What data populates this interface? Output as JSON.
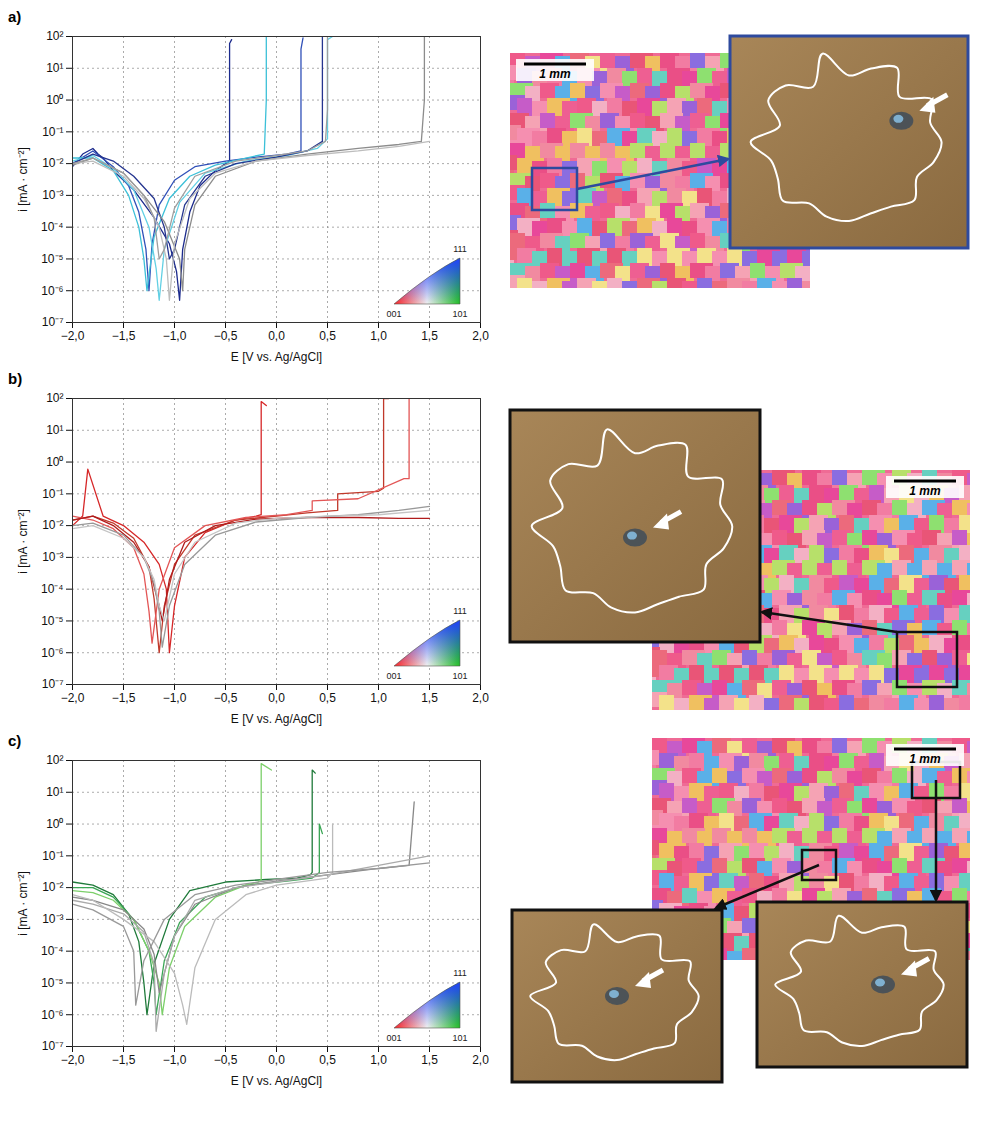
{
  "chart_data": [
    {
      "type": "line",
      "panel_label": "a)",
      "xlabel": "E [V vs. Ag/AgCl]",
      "ylabel": "i [mA · cm⁻²]",
      "log": "y",
      "grid": true,
      "xlim": [
        -2,
        2
      ],
      "ylim": [
        1e-07,
        100
      ],
      "xticks": [
        {
          "value": -2,
          "label": "−2,0"
        },
        {
          "value": -1.5,
          "label": "−1,5"
        },
        {
          "value": -1,
          "label": "−1,0"
        },
        {
          "value": -0.5,
          "label": "−0,5"
        },
        {
          "value": 0,
          "label": "0,0"
        },
        {
          "value": 0.5,
          "label": "0,5"
        },
        {
          "value": 1,
          "label": "1,0"
        },
        {
          "value": 1.5,
          "label": "1,5"
        },
        {
          "value": 2,
          "label": "2,0"
        }
      ],
      "yticks": [
        {
          "value": 1e-07,
          "label": "10⁻⁷"
        },
        {
          "value": 1e-06,
          "label": "10⁻⁶"
        },
        {
          "value": 1e-05,
          "label": "10⁻⁵"
        },
        {
          "value": 0.0001,
          "label": "10⁻⁴"
        },
        {
          "value": 0.001,
          "label": "10⁻³"
        },
        {
          "value": 0.01,
          "label": "10⁻²"
        },
        {
          "value": 0.1,
          "label": "10⁻¹"
        },
        {
          "value": 1,
          "label": "10⁰"
        },
        {
          "value": 10,
          "label": "10¹"
        },
        {
          "value": 100,
          "label": "10²"
        }
      ],
      "color_key": [
        "001",
        "101",
        "111"
      ],
      "scale_bar": "1 mm",
      "series": [
        {
          "color": "#1b2a8c",
          "x": [
            -2,
            -1.9,
            -1.8,
            -1.75,
            -1.7,
            -1.6,
            -1.4,
            -1.2,
            -1.05,
            -0.98,
            -0.95,
            -0.92,
            -0.85,
            -0.75,
            -0.6,
            -0.5,
            -0.46,
            -0.46,
            -0.44
          ],
          "values": [
            0.008,
            0.02,
            0.03,
            0.02,
            0.015,
            0.006,
            0.0015,
            0.0002,
            3e-05,
            4e-06,
            5e-07,
            2e-05,
            0.0003,
            0.002,
            0.006,
            0.01,
            0.012,
            60,
            80
          ]
        },
        {
          "color": "#3050b8",
          "x": [
            -2,
            -1.8,
            -1.6,
            -1.45,
            -1.35,
            -1.28,
            -1.25,
            -1.22,
            -1.15,
            -1.0,
            -0.8,
            -0.5,
            -0.2,
            0.1,
            0.24,
            0.24,
            0.26
          ],
          "values": [
            0.01,
            0.025,
            0.008,
            0.002,
            0.0003,
            2e-05,
            1e-06,
            3e-05,
            0.0005,
            0.003,
            0.008,
            0.012,
            0.016,
            0.02,
            0.025,
            40,
            90
          ]
        },
        {
          "color": "#3cc0d8",
          "x": [
            -2,
            -1.8,
            -1.6,
            -1.45,
            -1.35,
            -1.3,
            -1.27,
            -1.2,
            -1.05,
            -0.85,
            -0.6,
            -0.3,
            -0.12,
            -0.1,
            -0.1
          ],
          "values": [
            0.015,
            0.015,
            0.006,
            0.001,
            0.0001,
            1e-05,
            1e-06,
            5e-05,
            0.0008,
            0.004,
            0.009,
            0.015,
            0.02,
            1,
            100
          ]
        },
        {
          "color": "#62d0e4",
          "x": [
            -2,
            -1.8,
            -1.6,
            -1.4,
            -1.25,
            -1.18,
            -1.15,
            -1.1,
            -0.95,
            -0.7,
            -0.3,
            0.1,
            0.4,
            0.5,
            0.5,
            0.55
          ],
          "values": [
            0.012,
            0.018,
            0.007,
            0.0015,
            0.0001,
            5e-06,
            5e-07,
            2e-05,
            0.0006,
            0.005,
            0.012,
            0.018,
            0.03,
            0.06,
            80,
            100
          ]
        },
        {
          "color": "#25358f",
          "x": [
            -2,
            -1.8,
            -1.6,
            -1.4,
            -1.2,
            -1.1,
            -1.05,
            -1.0,
            -0.9,
            -0.7,
            -0.4,
            0.0,
            0.3,
            0.4,
            0.45,
            0.45
          ],
          "values": [
            0.01,
            0.02,
            0.012,
            0.004,
            0.0008,
            0.0001,
            1e-05,
            2e-05,
            0.0005,
            0.004,
            0.01,
            0.016,
            0.025,
            0.04,
            0.05,
            100
          ]
        },
        {
          "color": "#8c8c8c",
          "x": [
            -2,
            -1.8,
            -1.5,
            -1.3,
            -1.1,
            -0.95,
            -0.92,
            -0.9,
            -0.8,
            -0.6,
            -0.2,
            0.3,
            0.8,
            1.2,
            1.42,
            1.45,
            1.45
          ],
          "values": [
            0.009,
            0.015,
            0.005,
            0.001,
            0.00015,
            1e-05,
            1e-06,
            2e-05,
            0.0005,
            0.004,
            0.012,
            0.02,
            0.03,
            0.04,
            0.05,
            1,
            100
          ]
        },
        {
          "color": "#bdbdbd",
          "x": [
            -2,
            -1.8,
            -1.5,
            -1.3,
            -1.15,
            -1.08,
            -1.05,
            -1.0,
            -0.85,
            -0.6,
            -0.2,
            0.3,
            0.8,
            1.2,
            1.5
          ],
          "values": [
            0.01,
            0.012,
            0.004,
            0.0008,
            0.0001,
            1e-05,
            5e-07,
            3e-05,
            0.0008,
            0.005,
            0.012,
            0.018,
            0.025,
            0.035,
            0.05
          ]
        },
        {
          "color": "#9e9e9e",
          "x": [
            -2,
            -1.8,
            -1.5,
            -1.3,
            -1.2,
            -1.15,
            -1.1,
            -1.0,
            -0.8,
            -0.4,
            0,
            0.3,
            0.48,
            0.5,
            0.5
          ],
          "values": [
            0.01,
            0.015,
            0.005,
            0.001,
            0.0002,
            1e-05,
            2e-05,
            0.0004,
            0.004,
            0.012,
            0.018,
            0.025,
            0.05,
            0.5,
            100
          ]
        }
      ]
    },
    {
      "type": "line",
      "panel_label": "b)",
      "xlabel": "E [V vs. Ag/AgCl]",
      "ylabel": "i [mA · cm⁻²]",
      "log": "y",
      "grid": true,
      "xlim": [
        -2,
        2
      ],
      "ylim": [
        1e-07,
        100
      ],
      "xticks": [
        {
          "value": -2,
          "label": "−2,0"
        },
        {
          "value": -1.5,
          "label": "−1,5"
        },
        {
          "value": -1,
          "label": "−1,0"
        },
        {
          "value": -0.5,
          "label": "−0,5"
        },
        {
          "value": 0,
          "label": "0,0"
        },
        {
          "value": 0.5,
          "label": "0,5"
        },
        {
          "value": 1,
          "label": "1,0"
        },
        {
          "value": 1.5,
          "label": "1,5"
        },
        {
          "value": 2,
          "label": "2,0"
        }
      ],
      "yticks": [
        {
          "value": 1e-07,
          "label": "10⁻⁷"
        },
        {
          "value": 1e-06,
          "label": "10⁻⁶"
        },
        {
          "value": 1e-05,
          "label": "10⁻⁵"
        },
        {
          "value": 0.0001,
          "label": "10⁻⁴"
        },
        {
          "value": 0.001,
          "label": "10⁻³"
        },
        {
          "value": 0.01,
          "label": "10⁻²"
        },
        {
          "value": 0.1,
          "label": "10⁻¹"
        },
        {
          "value": 1,
          "label": "10⁰"
        },
        {
          "value": 10,
          "label": "10¹"
        },
        {
          "value": 100,
          "label": "10²"
        }
      ],
      "color_key": [
        "001",
        "101",
        "111"
      ],
      "scale_bar": "1 mm",
      "series": [
        {
          "color": "#d62728",
          "x": [
            -2,
            -1.9,
            -1.85,
            -1.7,
            -1.5,
            -1.3,
            -1.15,
            -1.08,
            -1.05,
            -1.0,
            -0.9,
            -0.7,
            -0.4,
            -0.2,
            -0.15,
            -0.15,
            -0.1
          ],
          "values": [
            0.01,
            0.02,
            0.6,
            0.02,
            0.01,
            0.003,
            0.0006,
            0.0001,
            1e-06,
            3e-05,
            0.001,
            0.006,
            0.015,
            0.02,
            0.022,
            80,
            60
          ]
        },
        {
          "color": "#c0392b",
          "x": [
            -2,
            -1.8,
            -1.6,
            -1.4,
            -1.25,
            -1.2,
            -1.15,
            -1.1,
            -1.0,
            -0.8,
            -0.4,
            0,
            0.3,
            0.6,
            0.6,
            1.0,
            1.05,
            1.05,
            1.1
          ],
          "values": [
            0.015,
            0.02,
            0.012,
            0.004,
            0.0005,
            5e-05,
            1e-06,
            3e-05,
            0.0006,
            0.005,
            0.015,
            0.02,
            0.025,
            0.03,
            0.1,
            0.12,
            0.15,
            100,
            100
          ]
        },
        {
          "color": "#e35656",
          "x": [
            -2,
            -1.8,
            -1.6,
            -1.4,
            -1.3,
            -1.25,
            -1.22,
            -1.15,
            -1.0,
            -0.7,
            -0.3,
            0.1,
            0.35,
            0.35,
            0.8,
            1.25,
            1.3,
            1.3
          ],
          "values": [
            0.02,
            0.015,
            0.008,
            0.002,
            0.0003,
            2e-05,
            2e-06,
            0.0001,
            0.002,
            0.01,
            0.018,
            0.022,
            0.03,
            0.06,
            0.07,
            0.3,
            0.3,
            100
          ]
        },
        {
          "color": "#b01c1c",
          "x": [
            -2,
            -1.8,
            -1.6,
            -1.4,
            -1.25,
            -1.15,
            -1.12,
            -1.05,
            -0.9,
            -0.6,
            -0.2,
            0.3,
            0.8,
            1.2,
            1.5
          ],
          "values": [
            0.015,
            0.02,
            0.01,
            0.003,
            0.0005,
            3e-05,
            1e-05,
            0.0002,
            0.003,
            0.01,
            0.016,
            0.018,
            0.018,
            0.017,
            0.017
          ]
        },
        {
          "color": "#999999",
          "x": [
            -2,
            -1.8,
            -1.5,
            -1.3,
            -1.2,
            -1.15,
            -1.12,
            -1.05,
            -0.9,
            -0.6,
            -0.2,
            0.3,
            0.8,
            1.2,
            1.5
          ],
          "values": [
            0.01,
            0.012,
            0.005,
            0.001,
            0.00015,
            2e-05,
            1.5e-06,
            3e-05,
            0.0006,
            0.005,
            0.013,
            0.018,
            0.022,
            0.03,
            0.04
          ]
        },
        {
          "color": "#c4c4c4",
          "x": [
            -2,
            -1.8,
            -1.5,
            -1.3,
            -1.2,
            -1.15,
            -1.1,
            -1.0,
            -0.8,
            -0.4,
            0,
            0.5,
            1.0,
            1.5
          ],
          "values": [
            0.008,
            0.01,
            0.004,
            0.001,
            0.0002,
            3e-05,
            1e-05,
            0.0003,
            0.003,
            0.012,
            0.017,
            0.02,
            0.022,
            0.03
          ]
        }
      ]
    },
    {
      "type": "line",
      "panel_label": "c)",
      "xlabel": "E [V vs. Ag/AgCl]",
      "ylabel": "i [mA · cm⁻²]",
      "log": "y",
      "grid": true,
      "xlim": [
        -2,
        2
      ],
      "ylim": [
        1e-07,
        100
      ],
      "xticks": [
        {
          "value": -2,
          "label": "−2,0"
        },
        {
          "value": -1.5,
          "label": "−1,5"
        },
        {
          "value": -1,
          "label": "−1,0"
        },
        {
          "value": -0.5,
          "label": "−0,5"
        },
        {
          "value": 0,
          "label": "0,0"
        },
        {
          "value": 0.5,
          "label": "0,5"
        },
        {
          "value": 1,
          "label": "1,0"
        },
        {
          "value": 1.5,
          "label": "1,5"
        },
        {
          "value": 2,
          "label": "2,0"
        }
      ],
      "yticks": [
        {
          "value": 1e-07,
          "label": "10⁻⁷"
        },
        {
          "value": 1e-06,
          "label": "10⁻⁶"
        },
        {
          "value": 1e-05,
          "label": "10⁻⁵"
        },
        {
          "value": 0.0001,
          "label": "10⁻⁴"
        },
        {
          "value": 0.001,
          "label": "10⁻³"
        },
        {
          "value": 0.01,
          "label": "10⁻²"
        },
        {
          "value": 0.1,
          "label": "10⁻¹"
        },
        {
          "value": 1,
          "label": "10⁰"
        },
        {
          "value": 10,
          "label": "10¹"
        },
        {
          "value": 100,
          "label": "10²"
        }
      ],
      "color_key": [
        "001",
        "101",
        "111"
      ],
      "scale_bar": "1 mm",
      "series": [
        {
          "color": "#1f7a3a",
          "x": [
            -2,
            -1.8,
            -1.6,
            -1.45,
            -1.35,
            -1.3,
            -1.27,
            -1.2,
            -1.05,
            -0.85,
            -0.5,
            -0.1,
            0.2,
            0.33,
            0.35,
            0.35,
            0.38
          ],
          "values": [
            0.015,
            0.012,
            0.006,
            0.0015,
            0.0002,
            1e-05,
            1e-06,
            4e-05,
            0.001,
            0.008,
            0.015,
            0.018,
            0.02,
            0.025,
            0.03,
            50,
            40
          ]
        },
        {
          "color": "#3aa655",
          "x": [
            -2,
            -1.8,
            -1.6,
            -1.4,
            -1.25,
            -1.2,
            -1.18,
            -1.1,
            -0.95,
            -0.7,
            -0.3,
            0.1,
            0.35,
            0.42,
            0.42,
            0.45
          ],
          "values": [
            0.01,
            0.01,
            0.005,
            0.001,
            0.0001,
            1e-05,
            1e-06,
            5e-05,
            0.0008,
            0.005,
            0.012,
            0.016,
            0.02,
            0.03,
            1,
            0.5
          ]
        },
        {
          "color": "#7ccf6a",
          "x": [
            -2,
            -1.8,
            -1.6,
            -1.4,
            -1.25,
            -1.15,
            -1.12,
            -1.05,
            -0.9,
            -0.6,
            -0.3,
            -0.18,
            -0.15,
            -0.15,
            -0.05
          ],
          "values": [
            0.008,
            0.007,
            0.004,
            0.001,
            0.0001,
            1e-05,
            1e-06,
            3e-05,
            0.0006,
            0.005,
            0.012,
            0.015,
            0.018,
            80,
            50
          ]
        },
        {
          "color": "#888888",
          "x": [
            -2,
            -1.8,
            -1.5,
            -1.3,
            -1.2,
            -1.15,
            -1.1,
            -1.0,
            -0.8,
            -0.4,
            0,
            0.5,
            1.0,
            1.3,
            1.35,
            1.35
          ],
          "values": [
            0.005,
            0.004,
            0.002,
            0.0005,
            8e-05,
            5e-06,
            2e-05,
            0.0003,
            0.003,
            0.01,
            0.016,
            0.025,
            0.04,
            0.05,
            5,
            5
          ]
        },
        {
          "color": "#aaaaaa",
          "x": [
            -2,
            -1.8,
            -1.5,
            -1.3,
            -1.2,
            -1.18,
            -1.1,
            -1.0,
            -0.8,
            -0.4,
            0,
            0.5,
            1.0,
            1.5
          ],
          "values": [
            0.004,
            0.003,
            0.0015,
            0.0004,
            4e-05,
            3e-07,
            2e-05,
            0.0003,
            0.004,
            0.01,
            0.015,
            0.025,
            0.05,
            0.1
          ]
        },
        {
          "color": "#bbbbbb",
          "x": [
            -2,
            -1.8,
            -1.5,
            -1.2,
            -1.0,
            -0.92,
            -0.88,
            -0.8,
            -0.6,
            -0.3,
            0,
            0.5,
            0.55,
            0.55
          ],
          "values": [
            0.006,
            0.004,
            0.001,
            0.0002,
            2e-05,
            2e-06,
            5e-07,
            3e-05,
            0.001,
            0.006,
            0.012,
            0.02,
            0.03,
            1
          ]
        },
        {
          "color": "#999999",
          "x": [
            -2,
            -1.8,
            -1.5,
            -1.4,
            -1.38,
            -1.3,
            -1.1,
            -0.8,
            -0.4,
            0,
            0.5,
            1.0,
            1.5
          ],
          "values": [
            0.003,
            0.002,
            0.0006,
            0.0001,
            2e-06,
            5e-05,
            0.001,
            0.006,
            0.012,
            0.018,
            0.03,
            0.04,
            0.06
          ]
        }
      ]
    }
  ]
}
